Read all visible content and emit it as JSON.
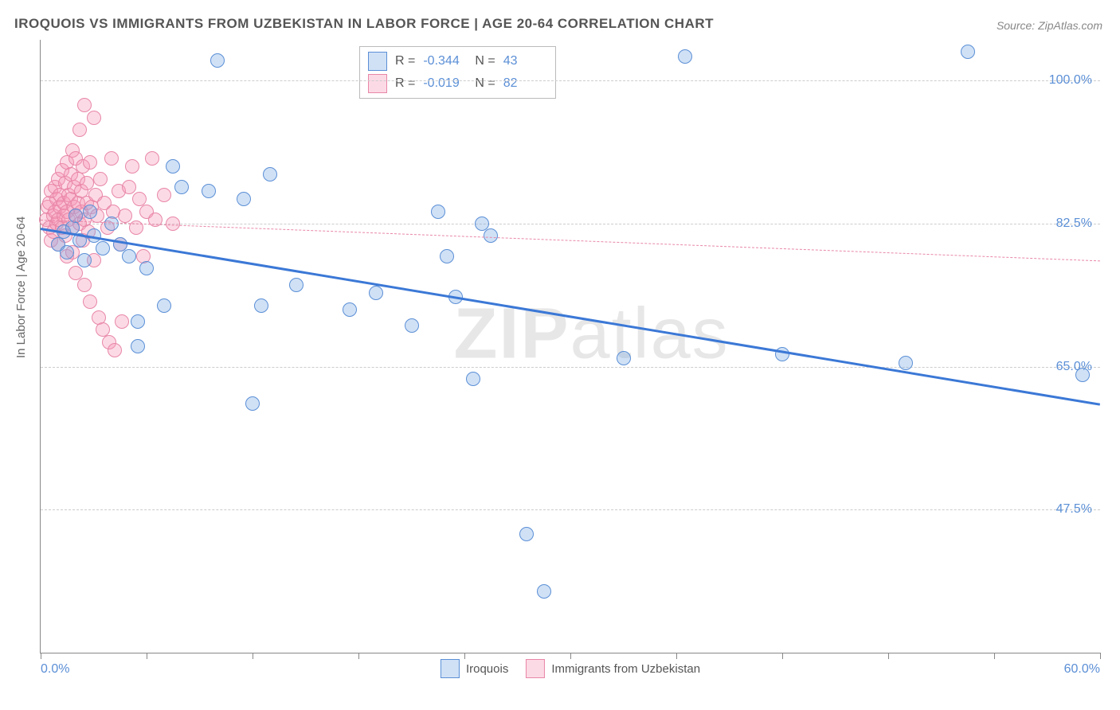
{
  "title": "IROQUOIS VS IMMIGRANTS FROM UZBEKISTAN IN LABOR FORCE | AGE 20-64 CORRELATION CHART",
  "source": "Source: ZipAtlas.com",
  "ylabel": "In Labor Force | Age 20-64",
  "watermark_a": "ZIP",
  "watermark_b": "atlas",
  "chart": {
    "type": "scatter",
    "xlim": [
      0,
      60
    ],
    "ylim": [
      30,
      105
    ],
    "x_min_label": "0.0%",
    "x_max_label": "60.0%",
    "y_grid": [
      47.5,
      65.0,
      82.5,
      100.0
    ],
    "y_grid_labels": [
      "47.5%",
      "65.0%",
      "82.5%",
      "100.0%"
    ],
    "x_ticks": [
      0,
      6,
      12,
      18,
      24,
      30,
      36,
      42,
      48,
      54,
      60
    ],
    "background_color": "#ffffff",
    "grid_color": "#cccccc",
    "axis_color": "#888888",
    "tick_label_color": "#5b8fd6",
    "point_radius": 9,
    "series": [
      {
        "name": "Iroquois",
        "fill": "rgba(120,170,230,0.35)",
        "stroke": "#5b8fd6",
        "R": "-0.344",
        "N": "43",
        "regression": {
          "x1": 0,
          "y1": 82.0,
          "x2": 60,
          "y2": 60.5,
          "color": "#3b78d6",
          "width": 3,
          "dash": false
        },
        "points": [
          [
            1.0,
            80.0
          ],
          [
            1.3,
            81.5
          ],
          [
            1.5,
            79.0
          ],
          [
            1.8,
            82.0
          ],
          [
            2.0,
            83.5
          ],
          [
            2.2,
            80.5
          ],
          [
            2.5,
            78.0
          ],
          [
            2.8,
            84.0
          ],
          [
            3.0,
            81.0
          ],
          [
            3.5,
            79.5
          ],
          [
            4.0,
            82.5
          ],
          [
            4.5,
            80.0
          ],
          [
            5.0,
            78.5
          ],
          [
            5.5,
            70.5
          ],
          [
            5.5,
            67.5
          ],
          [
            6.0,
            77.0
          ],
          [
            7.0,
            72.5
          ],
          [
            7.5,
            89.5
          ],
          [
            8.0,
            87.0
          ],
          [
            9.5,
            86.5
          ],
          [
            10.0,
            102.5
          ],
          [
            11.5,
            85.5
          ],
          [
            12.0,
            60.5
          ],
          [
            12.5,
            72.5
          ],
          [
            13.0,
            88.5
          ],
          [
            14.5,
            75.0
          ],
          [
            17.5,
            72.0
          ],
          [
            19.0,
            74.0
          ],
          [
            21.0,
            70.0
          ],
          [
            22.5,
            84.0
          ],
          [
            23.0,
            78.5
          ],
          [
            23.5,
            73.5
          ],
          [
            24.5,
            63.5
          ],
          [
            25.0,
            82.5
          ],
          [
            25.5,
            81.0
          ],
          [
            27.5,
            44.5
          ],
          [
            28.5,
            37.5
          ],
          [
            33.0,
            66.0
          ],
          [
            36.5,
            103.0
          ],
          [
            42.0,
            66.5
          ],
          [
            49.0,
            65.5
          ],
          [
            52.5,
            103.5
          ],
          [
            59.0,
            64.0
          ]
        ]
      },
      {
        "name": "Immigrants from Uzbekistan",
        "fill": "rgba(245,150,180,0.35)",
        "stroke": "#e887a8",
        "R": "-0.019",
        "N": "82",
        "regression": {
          "x1": 0,
          "y1": 83.0,
          "x2": 60,
          "y2": 78.0,
          "color": "#e887a8",
          "width": 1.5,
          "dash": true
        },
        "points": [
          [
            0.3,
            83.0
          ],
          [
            0.4,
            84.5
          ],
          [
            0.5,
            82.0
          ],
          [
            0.5,
            85.0
          ],
          [
            0.6,
            80.5
          ],
          [
            0.6,
            86.5
          ],
          [
            0.7,
            83.5
          ],
          [
            0.7,
            81.5
          ],
          [
            0.8,
            87.0
          ],
          [
            0.8,
            84.0
          ],
          [
            0.9,
            82.5
          ],
          [
            0.9,
            85.5
          ],
          [
            1.0,
            88.0
          ],
          [
            1.0,
            83.0
          ],
          [
            1.0,
            80.0
          ],
          [
            1.1,
            86.0
          ],
          [
            1.1,
            84.5
          ],
          [
            1.2,
            82.0
          ],
          [
            1.2,
            89.0
          ],
          [
            1.3,
            85.0
          ],
          [
            1.3,
            83.5
          ],
          [
            1.4,
            87.5
          ],
          [
            1.4,
            81.0
          ],
          [
            1.5,
            84.0
          ],
          [
            1.5,
            90.0
          ],
          [
            1.5,
            78.5
          ],
          [
            1.6,
            86.0
          ],
          [
            1.6,
            83.0
          ],
          [
            1.7,
            88.5
          ],
          [
            1.7,
            85.5
          ],
          [
            1.8,
            82.0
          ],
          [
            1.8,
            91.5
          ],
          [
            1.8,
            79.0
          ],
          [
            1.9,
            84.5
          ],
          [
            1.9,
            87.0
          ],
          [
            2.0,
            83.5
          ],
          [
            2.0,
            90.5
          ],
          [
            2.0,
            76.5
          ],
          [
            2.1,
            85.0
          ],
          [
            2.1,
            88.0
          ],
          [
            2.2,
            82.5
          ],
          [
            2.2,
            94.0
          ],
          [
            2.3,
            86.5
          ],
          [
            2.3,
            84.0
          ],
          [
            2.4,
            89.5
          ],
          [
            2.4,
            80.5
          ],
          [
            2.5,
            97.0
          ],
          [
            2.5,
            83.0
          ],
          [
            2.5,
            75.0
          ],
          [
            2.6,
            87.5
          ],
          [
            2.6,
            85.0
          ],
          [
            2.7,
            81.5
          ],
          [
            2.8,
            90.0
          ],
          [
            2.8,
            73.0
          ],
          [
            2.9,
            84.5
          ],
          [
            3.0,
            95.5
          ],
          [
            3.0,
            78.0
          ],
          [
            3.1,
            86.0
          ],
          [
            3.2,
            83.5
          ],
          [
            3.3,
            71.0
          ],
          [
            3.4,
            88.0
          ],
          [
            3.5,
            69.5
          ],
          [
            3.6,
            85.0
          ],
          [
            3.8,
            82.0
          ],
          [
            3.9,
            68.0
          ],
          [
            4.0,
            90.5
          ],
          [
            4.1,
            84.0
          ],
          [
            4.2,
            67.0
          ],
          [
            4.4,
            86.5
          ],
          [
            4.5,
            80.0
          ],
          [
            4.6,
            70.5
          ],
          [
            4.8,
            83.5
          ],
          [
            5.0,
            87.0
          ],
          [
            5.2,
            89.5
          ],
          [
            5.4,
            82.0
          ],
          [
            5.6,
            85.5
          ],
          [
            5.8,
            78.5
          ],
          [
            6.0,
            84.0
          ],
          [
            6.3,
            90.5
          ],
          [
            6.5,
            83.0
          ],
          [
            7.0,
            86.0
          ],
          [
            7.5,
            82.5
          ]
        ]
      }
    ]
  },
  "legend": {
    "series1": "Iroquois",
    "series2": "Immigrants from Uzbekistan"
  },
  "stats": {
    "r_label": "R =",
    "n_label": "N ="
  }
}
